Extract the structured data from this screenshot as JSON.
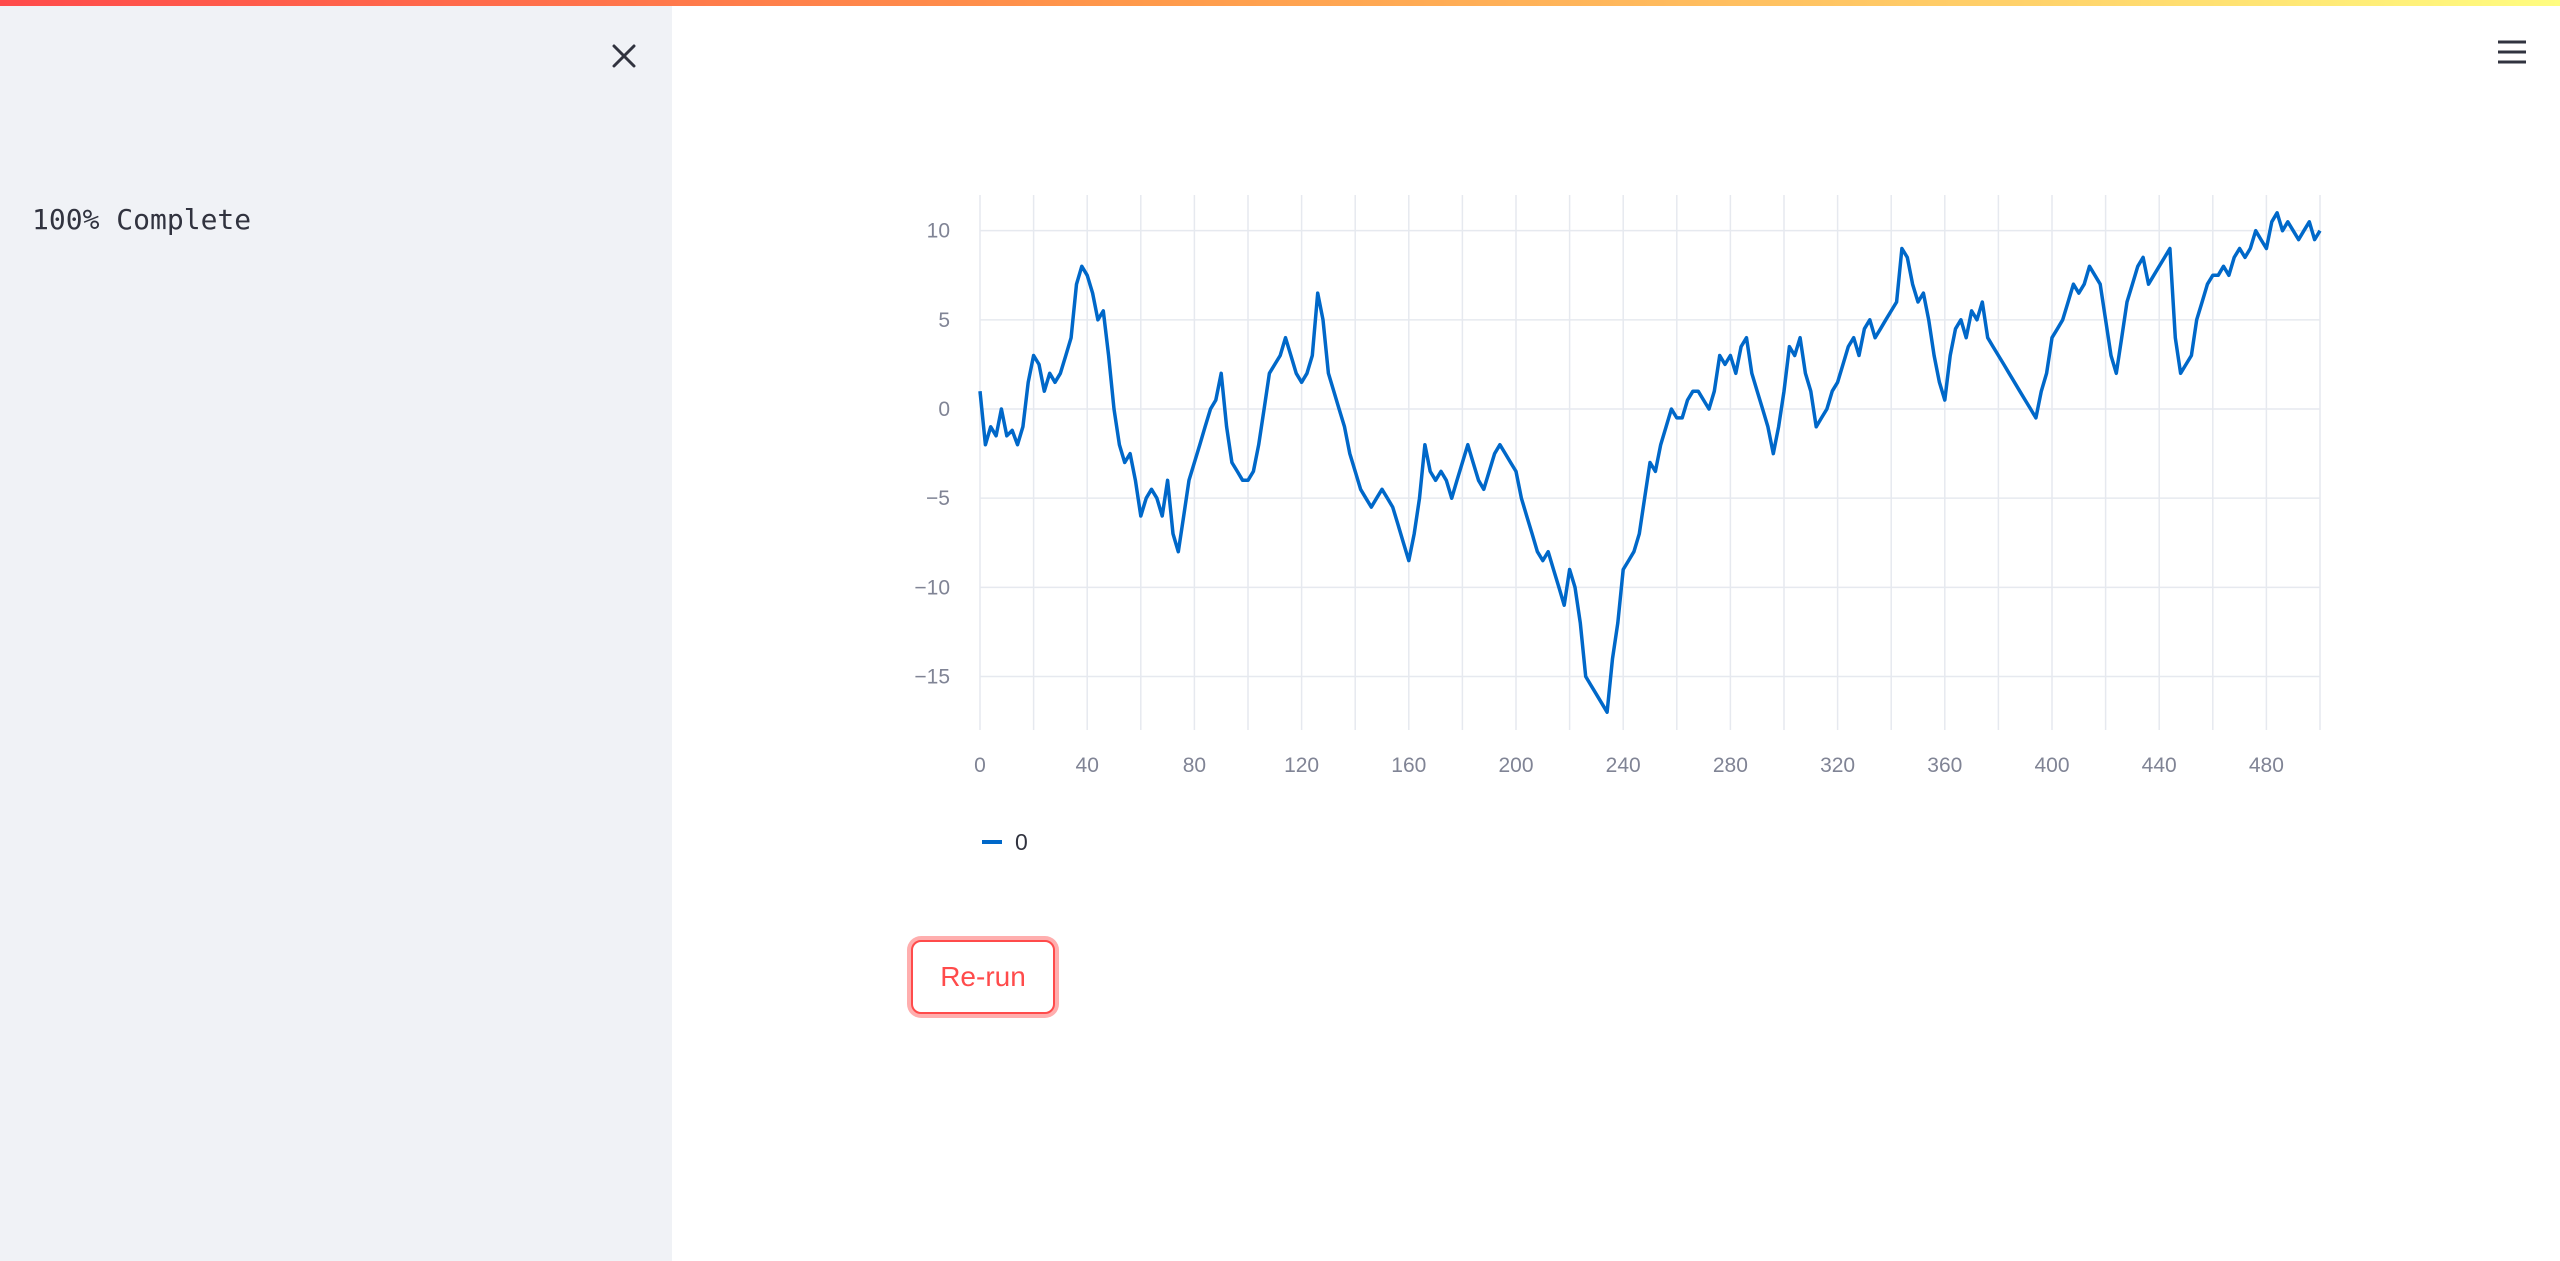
{
  "sidebar": {
    "progress_text": "100% Complete",
    "close_icon": "close-icon"
  },
  "header": {
    "menu_icon": "hamburger-menu-icon"
  },
  "main": {
    "rerun_label": "Re-run"
  },
  "colors": {
    "accent": "#ff4b4b",
    "line": "#0068c9",
    "sidebar_bg": "#f0f2f6"
  },
  "chart_data": {
    "type": "line",
    "xlim": [
      0,
      500
    ],
    "ylim": [
      -18,
      12
    ],
    "xticks": [
      0,
      40,
      80,
      120,
      160,
      200,
      240,
      280,
      320,
      360,
      400,
      440,
      480
    ],
    "yticks": [
      10,
      5,
      0,
      -5,
      -10,
      -15
    ],
    "grid": true,
    "legend_position": "bottom-left",
    "series": [
      {
        "name": "0",
        "points": [
          [
            0,
            1
          ],
          [
            2,
            -2
          ],
          [
            4,
            -1
          ],
          [
            6,
            -1.5
          ],
          [
            8,
            0
          ],
          [
            10,
            -1.5
          ],
          [
            12,
            -1.2
          ],
          [
            14,
            -2
          ],
          [
            16,
            -1
          ],
          [
            18,
            1.5
          ],
          [
            20,
            3
          ],
          [
            22,
            2.5
          ],
          [
            24,
            1
          ],
          [
            26,
            2
          ],
          [
            28,
            1.5
          ],
          [
            30,
            2
          ],
          [
            32,
            3
          ],
          [
            34,
            4
          ],
          [
            36,
            7
          ],
          [
            38,
            8
          ],
          [
            40,
            7.5
          ],
          [
            42,
            6.5
          ],
          [
            44,
            5
          ],
          [
            46,
            5.5
          ],
          [
            48,
            3
          ],
          [
            50,
            0
          ],
          [
            52,
            -2
          ],
          [
            54,
            -3
          ],
          [
            56,
            -2.5
          ],
          [
            58,
            -4
          ],
          [
            60,
            -6
          ],
          [
            62,
            -5
          ],
          [
            64,
            -4.5
          ],
          [
            66,
            -5
          ],
          [
            68,
            -6
          ],
          [
            70,
            -4
          ],
          [
            72,
            -7
          ],
          [
            74,
            -8
          ],
          [
            76,
            -6
          ],
          [
            78,
            -4
          ],
          [
            80,
            -3
          ],
          [
            82,
            -2
          ],
          [
            84,
            -1
          ],
          [
            86,
            0
          ],
          [
            88,
            0.5
          ],
          [
            90,
            2
          ],
          [
            92,
            -1
          ],
          [
            94,
            -3
          ],
          [
            96,
            -3.5
          ],
          [
            98,
            -4
          ],
          [
            100,
            -4
          ],
          [
            102,
            -3.5
          ],
          [
            104,
            -2
          ],
          [
            106,
            0
          ],
          [
            108,
            2
          ],
          [
            110,
            2.5
          ],
          [
            112,
            3
          ],
          [
            114,
            4
          ],
          [
            116,
            3
          ],
          [
            118,
            2
          ],
          [
            120,
            1.5
          ],
          [
            122,
            2
          ],
          [
            124,
            3
          ],
          [
            126,
            6.5
          ],
          [
            128,
            5
          ],
          [
            130,
            2
          ],
          [
            132,
            1
          ],
          [
            134,
            0
          ],
          [
            136,
            -1
          ],
          [
            138,
            -2.5
          ],
          [
            140,
            -3.5
          ],
          [
            142,
            -4.5
          ],
          [
            144,
            -5
          ],
          [
            146,
            -5.5
          ],
          [
            148,
            -5
          ],
          [
            150,
            -4.5
          ],
          [
            152,
            -5
          ],
          [
            154,
            -5.5
          ],
          [
            156,
            -6.5
          ],
          [
            158,
            -7.5
          ],
          [
            160,
            -8.5
          ],
          [
            162,
            -7
          ],
          [
            164,
            -5
          ],
          [
            166,
            -2
          ],
          [
            168,
            -3.5
          ],
          [
            170,
            -4
          ],
          [
            172,
            -3.5
          ],
          [
            174,
            -4
          ],
          [
            176,
            -5
          ],
          [
            178,
            -4
          ],
          [
            180,
            -3
          ],
          [
            182,
            -2
          ],
          [
            184,
            -3
          ],
          [
            186,
            -4
          ],
          [
            188,
            -4.5
          ],
          [
            190,
            -3.5
          ],
          [
            192,
            -2.5
          ],
          [
            194,
            -2
          ],
          [
            196,
            -2.5
          ],
          [
            198,
            -3
          ],
          [
            200,
            -3.5
          ],
          [
            202,
            -5
          ],
          [
            204,
            -6
          ],
          [
            206,
            -7
          ],
          [
            208,
            -8
          ],
          [
            210,
            -8.5
          ],
          [
            212,
            -8
          ],
          [
            214,
            -9
          ],
          [
            216,
            -10
          ],
          [
            218,
            -11
          ],
          [
            220,
            -9
          ],
          [
            222,
            -10
          ],
          [
            224,
            -12
          ],
          [
            226,
            -15
          ],
          [
            228,
            -15.5
          ],
          [
            230,
            -16
          ],
          [
            232,
            -16.5
          ],
          [
            234,
            -17
          ],
          [
            236,
            -14
          ],
          [
            238,
            -12
          ],
          [
            240,
            -9
          ],
          [
            242,
            -8.5
          ],
          [
            244,
            -8
          ],
          [
            246,
            -7
          ],
          [
            248,
            -5
          ],
          [
            250,
            -3
          ],
          [
            252,
            -3.5
          ],
          [
            254,
            -2
          ],
          [
            256,
            -1
          ],
          [
            258,
            0
          ],
          [
            260,
            -0.5
          ],
          [
            262,
            -0.5
          ],
          [
            264,
            0.5
          ],
          [
            266,
            1
          ],
          [
            268,
            1
          ],
          [
            270,
            0.5
          ],
          [
            272,
            0
          ],
          [
            274,
            1
          ],
          [
            276,
            3
          ],
          [
            278,
            2.5
          ],
          [
            280,
            3
          ],
          [
            282,
            2
          ],
          [
            284,
            3.5
          ],
          [
            286,
            4
          ],
          [
            288,
            2
          ],
          [
            290,
            1
          ],
          [
            292,
            0
          ],
          [
            294,
            -1
          ],
          [
            296,
            -2.5
          ],
          [
            298,
            -1
          ],
          [
            300,
            1
          ],
          [
            302,
            3.5
          ],
          [
            304,
            3
          ],
          [
            306,
            4
          ],
          [
            308,
            2
          ],
          [
            310,
            1
          ],
          [
            312,
            -1
          ],
          [
            314,
            -0.5
          ],
          [
            316,
            0
          ],
          [
            318,
            1
          ],
          [
            320,
            1.5
          ],
          [
            322,
            2.5
          ],
          [
            324,
            3.5
          ],
          [
            326,
            4
          ],
          [
            328,
            3
          ],
          [
            330,
            4.5
          ],
          [
            332,
            5
          ],
          [
            334,
            4
          ],
          [
            336,
            4.5
          ],
          [
            338,
            5
          ],
          [
            340,
            5.5
          ],
          [
            342,
            6
          ],
          [
            344,
            9
          ],
          [
            346,
            8.5
          ],
          [
            348,
            7
          ],
          [
            350,
            6
          ],
          [
            352,
            6.5
          ],
          [
            354,
            5
          ],
          [
            356,
            3
          ],
          [
            358,
            1.5
          ],
          [
            360,
            0.5
          ],
          [
            362,
            3
          ],
          [
            364,
            4.5
          ],
          [
            366,
            5
          ],
          [
            368,
            4
          ],
          [
            370,
            5.5
          ],
          [
            372,
            5
          ],
          [
            374,
            6
          ],
          [
            376,
            4
          ],
          [
            378,
            3.5
          ],
          [
            380,
            3
          ],
          [
            382,
            2.5
          ],
          [
            384,
            2
          ],
          [
            386,
            1.5
          ],
          [
            388,
            1
          ],
          [
            390,
            0.5
          ],
          [
            392,
            0
          ],
          [
            394,
            -0.5
          ],
          [
            396,
            1
          ],
          [
            398,
            2
          ],
          [
            400,
            4
          ],
          [
            402,
            4.5
          ],
          [
            404,
            5
          ],
          [
            406,
            6
          ],
          [
            408,
            7
          ],
          [
            410,
            6.5
          ],
          [
            412,
            7
          ],
          [
            414,
            8
          ],
          [
            416,
            7.5
          ],
          [
            418,
            7
          ],
          [
            420,
            5
          ],
          [
            422,
            3
          ],
          [
            424,
            2
          ],
          [
            426,
            4
          ],
          [
            428,
            6
          ],
          [
            430,
            7
          ],
          [
            432,
            8
          ],
          [
            434,
            8.5
          ],
          [
            436,
            7
          ],
          [
            438,
            7.5
          ],
          [
            440,
            8
          ],
          [
            442,
            8.5
          ],
          [
            444,
            9
          ],
          [
            446,
            4
          ],
          [
            448,
            2
          ],
          [
            450,
            2.5
          ],
          [
            452,
            3
          ],
          [
            454,
            5
          ],
          [
            456,
            6
          ],
          [
            458,
            7
          ],
          [
            460,
            7.5
          ],
          [
            462,
            7.5
          ],
          [
            464,
            8
          ],
          [
            466,
            7.5
          ],
          [
            468,
            8.5
          ],
          [
            470,
            9
          ],
          [
            472,
            8.5
          ],
          [
            474,
            9
          ],
          [
            476,
            10
          ],
          [
            478,
            9.5
          ],
          [
            480,
            9
          ],
          [
            482,
            10.5
          ],
          [
            484,
            11
          ],
          [
            486,
            10
          ],
          [
            488,
            10.5
          ],
          [
            490,
            10
          ],
          [
            492,
            9.5
          ],
          [
            494,
            10
          ],
          [
            496,
            10.5
          ],
          [
            498,
            9.5
          ],
          [
            500,
            10
          ]
        ]
      }
    ]
  }
}
